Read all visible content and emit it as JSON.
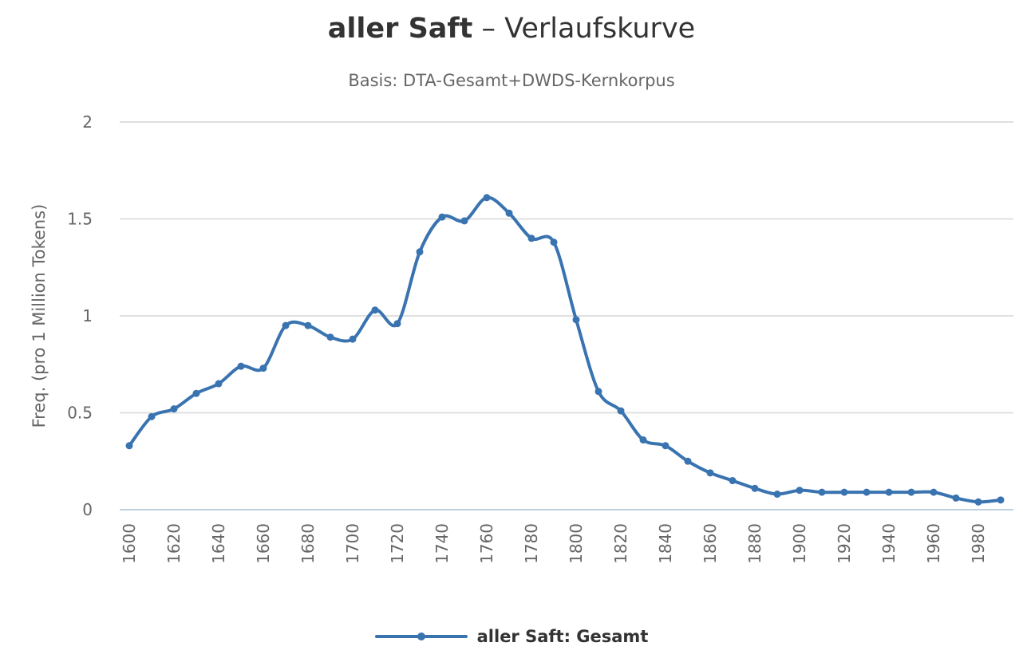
{
  "header": {
    "title_main": "aller Saft",
    "title_rest": " – Verlaufskurve",
    "subtitle": "Basis: DTA-Gesamt+DWDS-Kernkorpus"
  },
  "chart_data": {
    "type": "line",
    "title": "aller Saft – Verlaufskurve",
    "subtitle": "Basis: DTA-Gesamt+DWDS-Kernkorpus",
    "xlabel": "",
    "ylabel": "Freq. (pro 1 Million Tokens)",
    "ylim": [
      0,
      2
    ],
    "yticks": [
      "0",
      "0.5",
      "1",
      "1.5",
      "2"
    ],
    "xticks": [
      "1600",
      "1620",
      "1640",
      "1660",
      "1680",
      "1700",
      "1720",
      "1740",
      "1760",
      "1780",
      "1800",
      "1820",
      "1840",
      "1860",
      "1880",
      "1900",
      "1920",
      "1940",
      "1960",
      "1980"
    ],
    "grid": true,
    "legend_position": "bottom-center",
    "colors": {
      "series": "#3973b0",
      "grid": "#e0e0e0",
      "axis": "#c0d0e0"
    },
    "series": [
      {
        "name": "aller Saft: Gesamt",
        "x": [
          1600,
          1610,
          1620,
          1630,
          1640,
          1650,
          1660,
          1670,
          1680,
          1690,
          1700,
          1710,
          1720,
          1730,
          1740,
          1750,
          1760,
          1770,
          1780,
          1790,
          1800,
          1810,
          1820,
          1830,
          1840,
          1850,
          1860,
          1870,
          1880,
          1890,
          1900,
          1910,
          1920,
          1930,
          1940,
          1950,
          1960,
          1970,
          1980,
          1990
        ],
        "values": [
          0.33,
          0.48,
          0.52,
          0.6,
          0.65,
          0.74,
          0.73,
          0.95,
          0.95,
          0.89,
          0.88,
          1.03,
          0.96,
          1.33,
          1.51,
          1.49,
          1.61,
          1.53,
          1.4,
          1.38,
          0.98,
          0.61,
          0.51,
          0.36,
          0.33,
          0.25,
          0.19,
          0.15,
          0.11,
          0.08,
          0.1,
          0.09,
          0.09,
          0.09,
          0.09,
          0.09,
          0.09,
          0.06,
          0.04,
          0.05
        ]
      }
    ]
  }
}
